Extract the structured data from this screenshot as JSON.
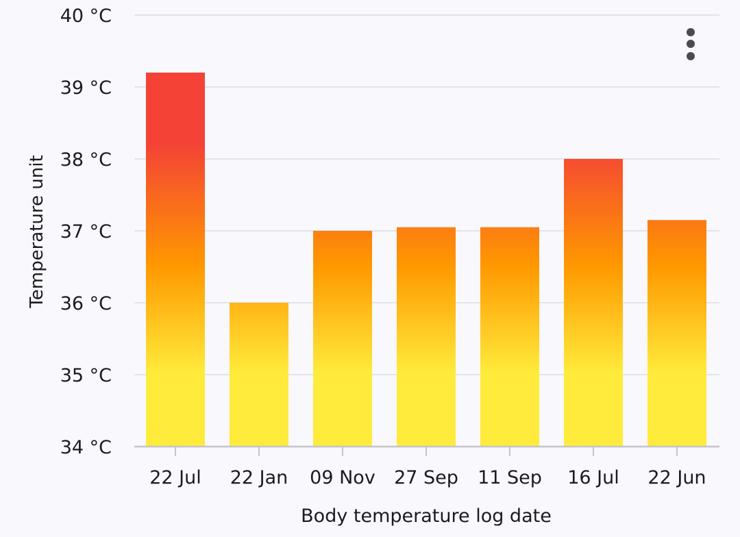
{
  "chart_data": {
    "type": "bar",
    "categories": [
      "22 Jul",
      "22 Jan",
      "09 Nov",
      "27 Sep",
      "11 Sep",
      "16 Jul",
      "22 Jun"
    ],
    "values": [
      39.2,
      36.0,
      37.0,
      37.05,
      37.05,
      38.0,
      37.15
    ],
    "ylim": [
      34,
      40
    ],
    "yticks": [
      "34 °C",
      "35 °C",
      "36 °C",
      "37 °C",
      "38 °C",
      "39 °C",
      "40 °C"
    ],
    "xlabel": "Body temperature log date",
    "ylabel": "Temperature unit",
    "grid": true,
    "colors": {
      "gradient_high": "#f44336",
      "gradient_mid": "#ff9800",
      "gradient_low": "#ffeb3b",
      "gridline": "#dcdce3",
      "axis": "#c4c4c9",
      "text": "#1b1b1f"
    }
  },
  "toolbar": {
    "menu_icon": "more-vert-icon"
  }
}
